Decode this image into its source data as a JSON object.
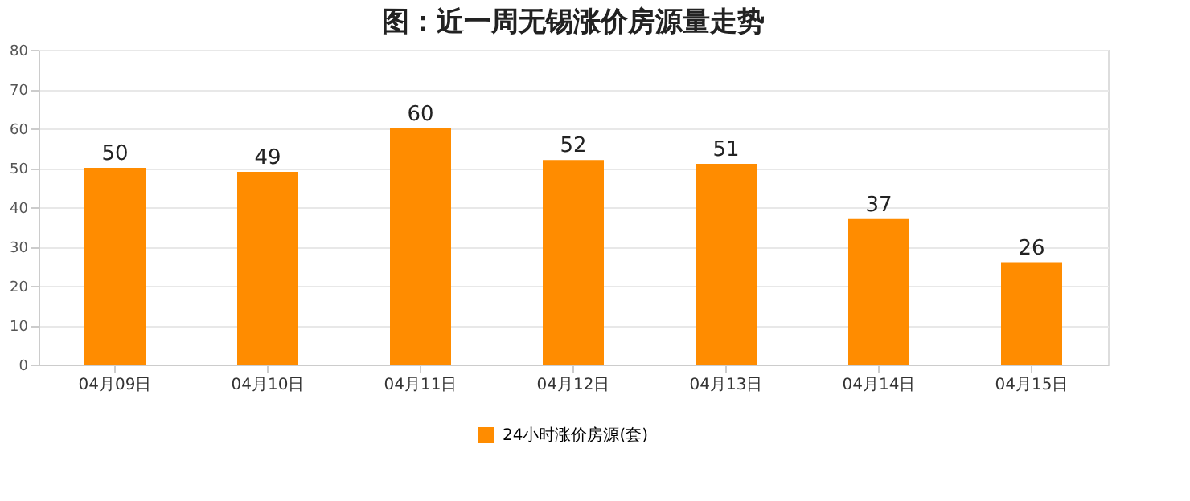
{
  "chart_data": {
    "type": "bar",
    "title": "图：近一周无锡涨价房源量走势",
    "categories": [
      "04月09日",
      "04月10日",
      "04月11日",
      "04月12日",
      "04月13日",
      "04月14日",
      "04月15日"
    ],
    "series": [
      {
        "name": "24小时涨价房源(套)",
        "color": "#ff8c00",
        "values": [
          50,
          49,
          60,
          52,
          51,
          37,
          26
        ]
      }
    ],
    "ylim": [
      0,
      80
    ],
    "yticks": [
      0,
      10,
      20,
      30,
      40,
      50,
      60,
      70,
      80
    ],
    "grid": "y",
    "legend": "bottom",
    "data_labels": true
  }
}
